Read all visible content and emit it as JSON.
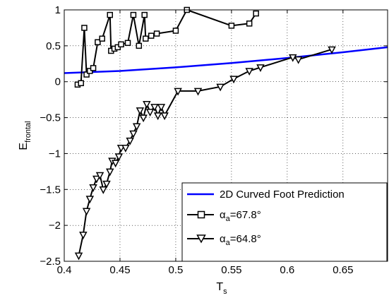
{
  "chart_data": {
    "type": "line",
    "xlabel": "T",
    "xlabel_sub": "s",
    "ylabel": "E",
    "ylabel_sub": "frontal",
    "xlim": [
      0.4,
      0.69
    ],
    "ylim": [
      -2.5,
      1
    ],
    "xticks": [
      0.4,
      0.45,
      0.5,
      0.55,
      0.6,
      0.65
    ],
    "xtick_labels": [
      "0.4",
      "0.45",
      "0.5",
      "0.55",
      "0.6",
      "0.65"
    ],
    "yticks": [
      -2.5,
      -2,
      -1.5,
      -1,
      -0.5,
      0,
      0.5,
      1
    ],
    "ytick_labels": [
      "−2.5",
      "−2",
      "−1.5",
      "−1",
      "−0.5",
      "0",
      "0.5",
      "1"
    ],
    "grid": true,
    "legend_position": "bottom-right",
    "series": [
      {
        "name": "2D Curved Foot Prediction",
        "color": "#0000ff",
        "marker": "none",
        "x": [
          0.4,
          0.45,
          0.5,
          0.55,
          0.6,
          0.65,
          0.69
        ],
        "y": [
          0.12,
          0.15,
          0.2,
          0.26,
          0.33,
          0.41,
          0.48
        ]
      },
      {
        "name_prefix": "α",
        "name_sub": "a",
        "name_suffix": "=67.8°",
        "color": "#000000",
        "marker": "square",
        "x": [
          0.412,
          0.415,
          0.418,
          0.42,
          0.423,
          0.426,
          0.43,
          0.434,
          0.441,
          0.442,
          0.445,
          0.448,
          0.451,
          0.457,
          0.462,
          0.467,
          0.472,
          0.473,
          0.478,
          0.483,
          0.5,
          0.51,
          0.55,
          0.566,
          0.572
        ],
        "y": [
          -0.04,
          -0.02,
          0.75,
          0.1,
          0.15,
          0.19,
          0.55,
          0.6,
          0.93,
          0.43,
          0.46,
          0.48,
          0.52,
          0.54,
          0.93,
          0.5,
          0.93,
          0.6,
          0.64,
          0.67,
          0.71,
          1.0,
          0.78,
          0.81,
          0.95
        ]
      },
      {
        "name_prefix": "α",
        "name_sub": "a",
        "name_suffix": "=64.8°",
        "color": "#000000",
        "marker": "triangle-down",
        "x": [
          0.413,
          0.417,
          0.42,
          0.423,
          0.426,
          0.429,
          0.432,
          0.435,
          0.438,
          0.441,
          0.443,
          0.446,
          0.449,
          0.451,
          0.455,
          0.459,
          0.462,
          0.465,
          0.468,
          0.471,
          0.474,
          0.477,
          0.481,
          0.484,
          0.487,
          0.49,
          0.502,
          0.52,
          0.54,
          0.552,
          0.566,
          0.576,
          0.605,
          0.61,
          0.64
        ],
        "y": [
          -2.42,
          -2.13,
          -1.8,
          -1.63,
          -1.47,
          -1.35,
          -1.3,
          -1.5,
          -1.42,
          -1.25,
          -1.1,
          -1.13,
          -1.04,
          -0.92,
          -0.92,
          -0.82,
          -0.72,
          -0.62,
          -0.4,
          -0.5,
          -0.31,
          -0.42,
          -0.35,
          -0.47,
          -0.35,
          -0.47,
          -0.13,
          -0.13,
          -0.07,
          0.04,
          0.15,
          0.2,
          0.34,
          0.31,
          0.45
        ]
      }
    ]
  }
}
